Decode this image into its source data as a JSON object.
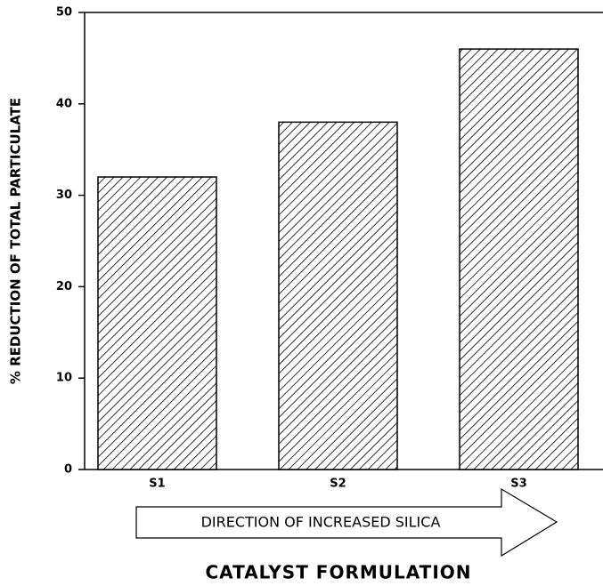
{
  "chart_data": {
    "type": "bar",
    "categories": [
      "S1",
      "S2",
      "S3"
    ],
    "values": [
      32,
      38,
      46
    ],
    "color": "#000000",
    "hatch": true,
    "ylim": [
      0,
      50
    ],
    "yticks": [
      0,
      10,
      20,
      30,
      40,
      50
    ],
    "y_label": "% REDUCTION OF TOTAL PARTICULATE",
    "x_label": "CATALYST FORMULATION",
    "annotation": "DIRECTION OF INCREASED SILICA"
  }
}
